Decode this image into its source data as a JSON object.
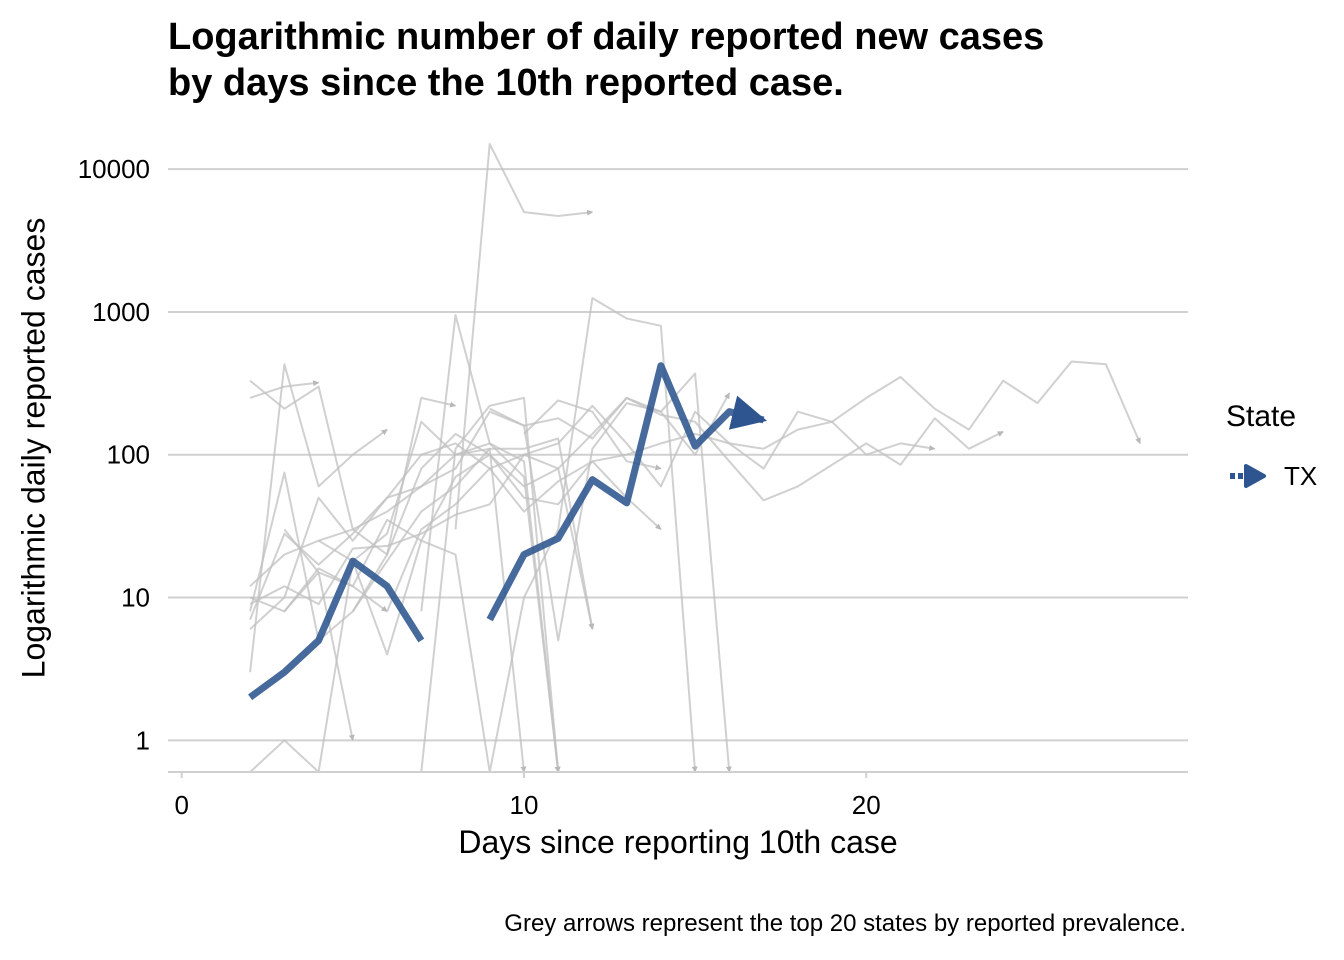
{
  "title_lines": [
    "Logarithmic number of daily reported new cases",
    "by days since the 10th reported case."
  ],
  "caption": "Grey arrows represent the top 20 states by reported prevalence.",
  "chart_data": {
    "type": "line",
    "title": "Logarithmic number of daily reported new cases by days since the 10th reported case.",
    "xlabel": "Days since reporting 10th case",
    "ylabel": "Logarithmic daily reported cases",
    "y_scale": "log10",
    "xlim": [
      -0.4,
      29.4
    ],
    "ylim": [
      0.6,
      16000
    ],
    "x_ticks": [
      0,
      10,
      20
    ],
    "x_tick_labels": [
      "0",
      "10",
      "20"
    ],
    "y_ticks": [
      1,
      10,
      100,
      1000,
      10000
    ],
    "y_tick_labels": [
      "1",
      "10",
      "100",
      "1000",
      "10000"
    ],
    "grid": "horizontal major",
    "legend": {
      "title": "State",
      "position": "right",
      "entries": [
        "TX"
      ]
    },
    "colors": {
      "highlight": "#2e5590",
      "background_series": "#c0c0c0",
      "grid": "#d0d0d0"
    },
    "highlight_series": {
      "name": "TX",
      "segments": [
        {
          "x": [
            2,
            3,
            4,
            5,
            6,
            7
          ],
          "y": [
            2,
            3,
            5,
            18,
            12,
            5
          ]
        },
        {
          "x": [
            9,
            10,
            11,
            12,
            13,
            14,
            15,
            16,
            17
          ],
          "y": [
            7,
            20,
            26,
            67,
            46,
            420,
            115,
            200,
            175
          ]
        }
      ]
    },
    "background_series": [
      {
        "x": [
          2,
          3,
          4
        ],
        "y": [
          250,
          300,
          320
        ]
      },
      {
        "x": [
          2,
          3,
          4,
          5,
          6,
          7,
          8
        ],
        "y": [
          330,
          210,
          300,
          30,
          20,
          250,
          220
        ]
      },
      {
        "x": [
          2,
          3,
          4,
          5,
          6,
          7,
          8,
          9,
          10,
          11
        ],
        "y": [
          12,
          20,
          25,
          30,
          40,
          60,
          100,
          120,
          70,
          0.6
        ]
      },
      {
        "x": [
          2,
          3,
          4,
          5,
          6,
          7,
          8,
          9,
          10,
          11,
          12
        ],
        "y": [
          8,
          75,
          5,
          8,
          20,
          80,
          140,
          100,
          60,
          80,
          6
        ]
      },
      {
        "x": [
          2,
          3,
          4,
          5,
          6
        ],
        "y": [
          3,
          430,
          60,
          100,
          150
        ]
      },
      {
        "x": [
          2,
          3,
          4,
          5,
          6,
          7,
          8,
          9,
          10,
          11,
          12,
          13,
          14,
          15,
          16
        ],
        "y": [
          6,
          10,
          50,
          25,
          50,
          60,
          80,
          200,
          160,
          180,
          130,
          250,
          200,
          100,
          270
        ]
      },
      {
        "x": [
          2,
          3,
          4,
          5,
          6,
          7,
          8,
          9,
          10,
          11,
          12,
          13,
          14,
          15,
          16,
          17,
          18,
          19,
          20,
          21,
          22,
          23,
          24,
          25,
          26,
          27,
          28
        ],
        "y": [
          7,
          28,
          17,
          28,
          50,
          100,
          120,
          80,
          100,
          120,
          220,
          120,
          60,
          200,
          120,
          80,
          200,
          170,
          250,
          350,
          210,
          150,
          330,
          230,
          450,
          430,
          120
        ]
      },
      {
        "x": [
          2,
          3,
          4,
          5,
          6
        ],
        "y": [
          10,
          8,
          16,
          12,
          8
        ]
      },
      {
        "x": [
          2,
          3,
          4,
          5,
          6,
          7,
          8,
          9,
          10,
          11,
          12,
          13,
          14,
          15,
          16,
          17,
          18,
          19,
          20,
          21,
          22,
          23,
          24
        ],
        "y": [
          9,
          12,
          9,
          22,
          23,
          28,
          38,
          45,
          100,
          80,
          140,
          250,
          190,
          170,
          90,
          48,
          60,
          85,
          120,
          85,
          180,
          110,
          145
        ]
      },
      {
        "x": [
          2,
          3,
          4,
          5,
          6,
          7,
          8,
          9,
          10,
          11,
          12,
          13,
          14,
          15
        ],
        "y": [
          0.6,
          1,
          0.6,
          18,
          4,
          25,
          20,
          0.6,
          10,
          30,
          1250,
          900,
          800,
          0.6
        ]
      },
      {
        "x": [
          3,
          4,
          5,
          6,
          7,
          8,
          9,
          10,
          11,
          12,
          13,
          14
        ],
        "y": [
          8,
          15,
          12,
          35,
          25,
          70,
          100,
          50,
          45,
          90,
          50,
          30
        ]
      },
      {
        "x": [
          3,
          4,
          5
        ],
        "y": [
          30,
          15,
          1
        ]
      },
      {
        "x": [
          4,
          5,
          6,
          7,
          8,
          9,
          10
        ],
        "y": [
          25,
          18,
          28,
          170,
          100,
          110,
          0.6
        ]
      },
      {
        "x": [
          5,
          6,
          7,
          8,
          9,
          10,
          11,
          12
        ],
        "y": [
          8,
          18,
          40,
          60,
          110,
          110,
          130,
          6
        ]
      },
      {
        "x": [
          6,
          7,
          8,
          9,
          10,
          11,
          12,
          13,
          14,
          15,
          16,
          17,
          18,
          19,
          20,
          21,
          22
        ],
        "y": [
          8,
          30,
          45,
          80,
          40,
          65,
          90,
          100,
          120,
          140,
          120,
          110,
          150,
          170,
          100,
          120,
          110
        ]
      },
      {
        "x": [
          7,
          8,
          9,
          10,
          11
        ],
        "y": [
          8,
          950,
          120,
          90,
          0.6
        ]
      },
      {
        "x": [
          8,
          9,
          10,
          11,
          12
        ],
        "y": [
          30,
          15000,
          5000,
          4700,
          5000
        ]
      },
      {
        "x": [
          7,
          8,
          9,
          10,
          11
        ],
        "y": [
          0.6,
          110,
          220,
          250,
          0.6
        ]
      },
      {
        "x": [
          9,
          10,
          11,
          12,
          13,
          14,
          15,
          16
        ],
        "y": [
          210,
          160,
          5,
          110,
          230,
          200,
          370,
          0.6
        ]
      },
      {
        "x": [
          10,
          11,
          12,
          13,
          14
        ],
        "y": [
          140,
          240,
          200,
          90,
          80
        ]
      }
    ]
  }
}
